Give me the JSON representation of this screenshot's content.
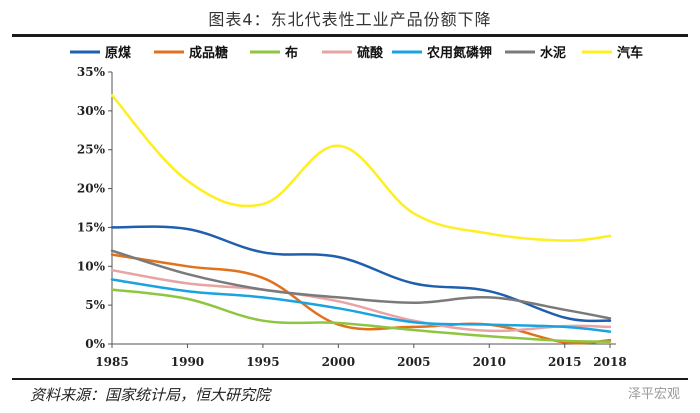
{
  "header": {
    "title": "图表4：东北代表性工业产品份额下降"
  },
  "footer": {
    "source": "资料来源：国家统计局，恒大研究院",
    "watermark": "泽平宏观"
  },
  "chart_data": {
    "type": "line",
    "title": "图表4：东北代表性工业产品份额下降",
    "xlabel": "",
    "ylabel": "",
    "x_ticks": [
      1985,
      1990,
      1995,
      2000,
      2005,
      2010,
      2015,
      2018
    ],
    "y_ticks": [
      "0%",
      "5%",
      "10%",
      "15%",
      "20%",
      "25%",
      "30%",
      "35%"
    ],
    "ylim": [
      0,
      35
    ],
    "xlim": [
      1985,
      2018
    ],
    "grid": false,
    "legend": "top",
    "series": [
      {
        "name": "原煤",
        "color": "#1f5fad",
        "points": [
          [
            1985,
            15.0
          ],
          [
            1990,
            14.8
          ],
          [
            1995,
            11.8
          ],
          [
            2000,
            11.2
          ],
          [
            2005,
            7.8
          ],
          [
            2010,
            6.8
          ],
          [
            2015,
            3.4
          ],
          [
            2018,
            3.0
          ]
        ]
      },
      {
        "name": "成品糖",
        "color": "#e2711d",
        "points": [
          [
            1985,
            11.5
          ],
          [
            1990,
            10.0
          ],
          [
            1995,
            8.5
          ],
          [
            2000,
            2.5
          ],
          [
            2005,
            2.2
          ],
          [
            2010,
            2.5
          ],
          [
            2015,
            0.2
          ],
          [
            2018,
            0.5
          ]
        ]
      },
      {
        "name": "布",
        "color": "#8dc63f",
        "points": [
          [
            1985,
            7.0
          ],
          [
            1990,
            5.8
          ],
          [
            1995,
            3.0
          ],
          [
            2000,
            2.7
          ],
          [
            2005,
            1.8
          ],
          [
            2010,
            1.0
          ],
          [
            2015,
            0.4
          ],
          [
            2018,
            0.3
          ]
        ]
      },
      {
        "name": "硫酸",
        "color": "#e8a3a3",
        "points": [
          [
            1985,
            9.5
          ],
          [
            1990,
            7.8
          ],
          [
            1995,
            7.0
          ],
          [
            2000,
            5.5
          ],
          [
            2005,
            3.0
          ],
          [
            2010,
            1.7
          ],
          [
            2015,
            2.3
          ],
          [
            2018,
            2.2
          ]
        ]
      },
      {
        "name": "农用氮磷钾",
        "color": "#1aa3e0",
        "points": [
          [
            1985,
            8.3
          ],
          [
            1990,
            6.8
          ],
          [
            1995,
            6.0
          ],
          [
            2000,
            4.6
          ],
          [
            2005,
            2.8
          ],
          [
            2010,
            2.5
          ],
          [
            2015,
            2.2
          ],
          [
            2018,
            1.6
          ]
        ]
      },
      {
        "name": "水泥",
        "color": "#7a7a7a",
        "points": [
          [
            1985,
            12.0
          ],
          [
            1990,
            9.0
          ],
          [
            1995,
            7.0
          ],
          [
            2000,
            6.0
          ],
          [
            2005,
            5.3
          ],
          [
            2010,
            6.0
          ],
          [
            2015,
            4.4
          ],
          [
            2018,
            3.3
          ]
        ]
      },
      {
        "name": "汽车",
        "color": "#ffee22",
        "points": [
          [
            1985,
            32.0
          ],
          [
            1990,
            21.0
          ],
          [
            1995,
            18.0
          ],
          [
            2000,
            25.5
          ],
          [
            2005,
            16.8
          ],
          [
            2010,
            14.2
          ],
          [
            2015,
            13.3
          ],
          [
            2018,
            13.9
          ]
        ]
      }
    ]
  }
}
